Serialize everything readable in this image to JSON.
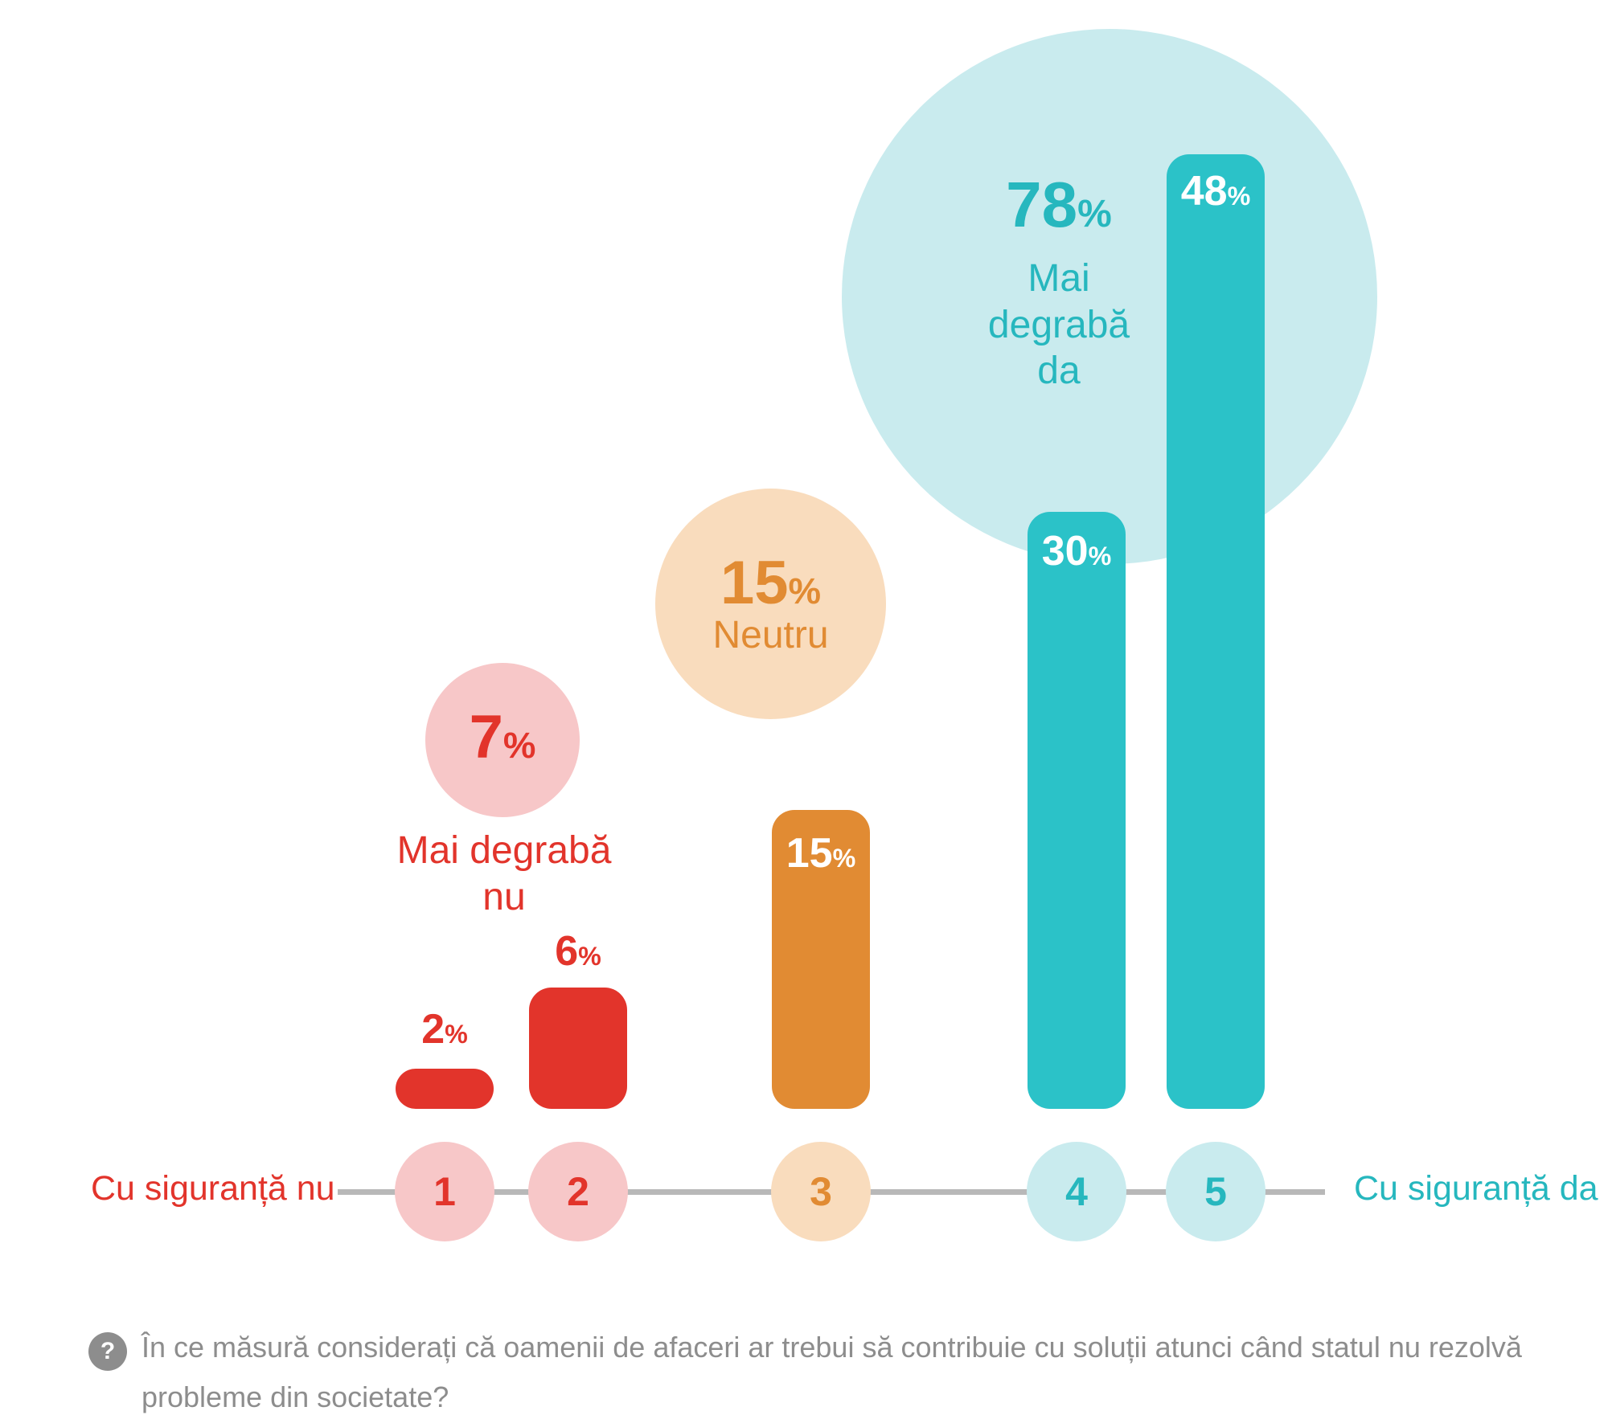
{
  "chart_data": {
    "type": "bar",
    "title": "",
    "categories": [
      "1",
      "2",
      "3",
      "4",
      "5"
    ],
    "values": [
      2,
      6,
      15,
      30,
      48
    ],
    "value_unit": "%",
    "value_labels": [
      "2%",
      "6%",
      "15%",
      "30%",
      "48%"
    ],
    "xlabel": "",
    "ylabel": "",
    "grid": false,
    "legend_position": "none",
    "scale": {
      "min_label": "Cu siguranță nu",
      "max_label": "Cu siguranță da"
    },
    "group_bubbles": [
      {
        "label": "Mai degrabă nu",
        "value": 7,
        "unit": "%",
        "covers_categories": [
          "1",
          "2"
        ]
      },
      {
        "label": "Neutru",
        "value": 15,
        "unit": "%",
        "covers_categories": [
          "3"
        ]
      },
      {
        "label": "Mai degrabă da",
        "value": 78,
        "unit": "%",
        "covers_categories": [
          "4",
          "5"
        ]
      }
    ],
    "question": "În ce măsură considerați că oamenii de afaceri ar trebui să contribuie cu soluții atunci când statul nu rezolvă probleme din societate?"
  },
  "bars": [
    {
      "value": "2",
      "pct": "%"
    },
    {
      "value": "6",
      "pct": "%"
    },
    {
      "value": "15",
      "pct": "%"
    },
    {
      "value": "30",
      "pct": "%"
    },
    {
      "value": "48",
      "pct": "%"
    }
  ],
  "bubbles": {
    "no": {
      "value": "7",
      "pct": "%",
      "label": "Mai degrabă nu"
    },
    "neutral": {
      "value": "15",
      "pct": "%",
      "label": "Neutru"
    },
    "yes": {
      "value": "78",
      "pct": "%",
      "label": "Mai degrabă da"
    }
  },
  "axis": {
    "ticks": [
      "1",
      "2",
      "3",
      "4",
      "5"
    ],
    "left_label": "Cu siguranță nu",
    "right_label": "Cu siguranță da"
  },
  "question": {
    "icon_glyph": "?",
    "line1": "În ce măsură considerați că oamenii de afaceri ar trebui să contribuie cu soluții atunci când statul nu rezolvă",
    "line2": "probleme din societate?"
  },
  "colors": {
    "red": "#e2342b",
    "pink": "#f7c7c8",
    "orange": "#e18b33",
    "peach": "#f9dcbd",
    "teal": "#2bc2c8",
    "teal_text": "#26b7be",
    "light_teal": "#c9ebee",
    "axis_gray": "#b8b8b8",
    "question_gray": "#8d8d8d",
    "white": "#ffffff"
  }
}
